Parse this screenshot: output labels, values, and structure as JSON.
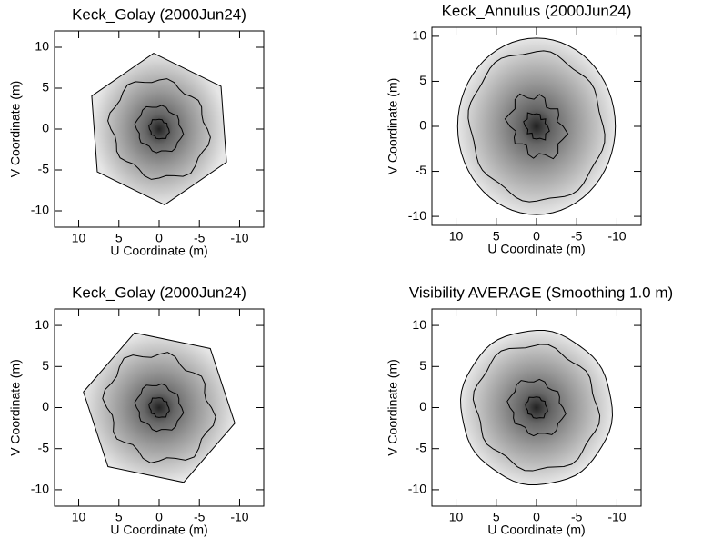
{
  "chart_data": [
    {
      "type": "contour",
      "title": "Keck_Golay (2000Jun24)",
      "xlabel": "U Coordinate (m)",
      "ylabel": "V Coordinate (m)",
      "xlim": [
        13,
        -13
      ],
      "ylim": [
        -12,
        12
      ],
      "xticks": [
        10,
        5,
        0,
        -5,
        -10
      ],
      "yticks": [
        -10,
        -5,
        0,
        5,
        10
      ]
    },
    {
      "type": "contour",
      "title": "Keck_Annulus (2000Jun24)",
      "xlabel": "U Coordinate (m)",
      "ylabel": "V Coordinate (m)",
      "xlim": [
        13,
        -13
      ],
      "ylim": [
        -11,
        11
      ],
      "xticks": [
        10,
        5,
        0,
        -5,
        -10
      ],
      "yticks": [
        -10,
        -5,
        0,
        5,
        10
      ]
    },
    {
      "type": "contour",
      "title": "Keck_Golay (2000Jun24)",
      "xlabel": "U Coordinate (m)",
      "ylabel": "V Coordinate (m)",
      "xlim": [
        13,
        -13
      ],
      "ylim": [
        -12,
        12
      ],
      "xticks": [
        10,
        5,
        0,
        -5,
        -10
      ],
      "yticks": [
        -10,
        -5,
        0,
        5,
        10
      ]
    },
    {
      "type": "contour",
      "title": "Visibility AVERAGE (Smoothing 1.0 m)",
      "xlabel": "U Coordinate (m)",
      "ylabel": "V Coordinate (m)",
      "xlim": [
        13,
        -13
      ],
      "ylim": [
        -12,
        12
      ],
      "xticks": [
        10,
        5,
        0,
        -5,
        -10
      ],
      "yticks": [
        -10,
        -5,
        0,
        5,
        10
      ]
    }
  ]
}
